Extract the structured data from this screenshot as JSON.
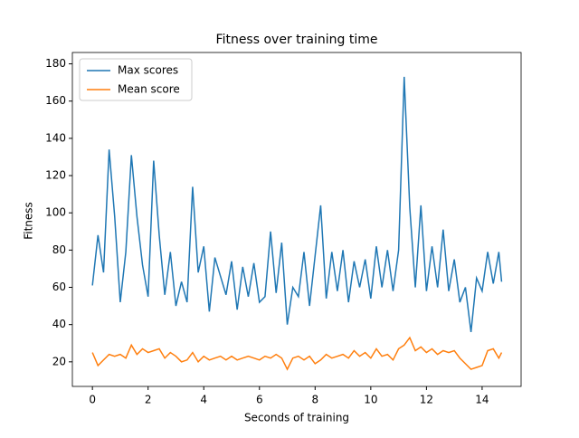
{
  "chart_data": {
    "type": "line",
    "title": "Fitness over training time",
    "x_label": "Seconds of training",
    "y_label": "Fitness",
    "x": [
      0,
      0.2,
      0.4,
      0.6,
      0.8,
      1.0,
      1.2,
      1.4,
      1.6,
      1.8,
      2.0,
      2.2,
      2.4,
      2.6,
      2.8,
      3.0,
      3.2,
      3.4,
      3.6,
      3.8,
      4.0,
      4.2,
      4.4,
      4.6,
      4.8,
      5.0,
      5.2,
      5.4,
      5.6,
      5.8,
      6.0,
      6.2,
      6.4,
      6.6,
      6.8,
      7.0,
      7.2,
      7.4,
      7.6,
      7.8,
      8.0,
      8.2,
      8.4,
      8.6,
      8.8,
      9.0,
      9.2,
      9.4,
      9.6,
      9.8,
      10.0,
      10.2,
      10.4,
      10.6,
      10.8,
      11.0,
      11.2,
      11.4,
      11.6,
      11.8,
      12.0,
      12.2,
      12.4,
      12.6,
      12.8,
      13.0,
      13.2,
      13.4,
      13.6,
      13.8,
      14.0,
      14.2,
      14.4,
      14.6,
      14.7
    ],
    "series": [
      {
        "name": "Max scores",
        "color": "#1f77b4",
        "values": [
          61,
          88,
          68,
          134,
          98,
          52,
          79,
          131,
          98,
          72,
          55,
          128,
          88,
          56,
          79,
          50,
          63,
          52,
          114,
          68,
          82,
          47,
          76,
          66,
          56,
          74,
          48,
          71,
          55,
          73,
          52,
          55,
          90,
          57,
          84,
          40,
          60,
          55,
          79,
          50,
          77,
          104,
          54,
          79,
          58,
          80,
          52,
          74,
          60,
          75,
          54,
          82,
          60,
          80,
          58,
          80,
          173,
          103,
          60,
          104,
          58,
          82,
          60,
          91,
          58,
          75,
          52,
          60,
          36,
          65,
          58,
          79,
          62,
          79,
          63
        ]
      },
      {
        "name": "Mean score",
        "color": "#ff7f0e",
        "values": [
          25,
          18,
          21,
          24,
          23,
          24,
          22,
          29,
          24,
          27,
          25,
          26,
          27,
          22,
          25,
          23,
          20,
          21,
          25,
          20,
          23,
          21,
          22,
          23,
          21,
          23,
          21,
          22,
          23,
          22,
          21,
          23,
          22,
          24,
          22,
          16,
          22,
          23,
          21,
          23,
          19,
          21,
          24,
          22,
          23,
          24,
          22,
          26,
          23,
          25,
          22,
          27,
          23,
          24,
          21,
          27,
          29,
          33,
          26,
          28,
          25,
          27,
          24,
          26,
          25,
          26,
          22,
          19,
          16,
          17,
          18,
          26,
          27,
          22,
          25
        ]
      }
    ],
    "xlim": [
      -0.72,
      15.4
    ],
    "ylim": [
      6.8,
      186.1
    ],
    "xticks": [
      0,
      2,
      4,
      6,
      8,
      10,
      12,
      14
    ],
    "yticks": [
      20,
      40,
      60,
      80,
      100,
      120,
      140,
      160,
      180
    ],
    "legend": "upper left"
  }
}
